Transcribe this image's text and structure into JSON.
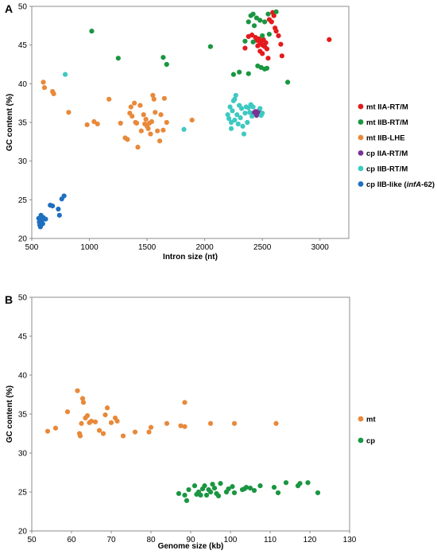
{
  "chart_data": [
    {
      "panel": "A",
      "type": "scatter",
      "title": "",
      "xlabel": "Intron size (nt)",
      "ylabel": "GC content (%)",
      "xlim": [
        500,
        3250
      ],
      "ylim": [
        20,
        50
      ],
      "xticks": [
        500,
        1000,
        1500,
        2000,
        2500,
        3000
      ],
      "yticks": [
        20,
        25,
        30,
        35,
        40,
        45,
        50
      ],
      "grid": false,
      "legend_position": "right",
      "series": [
        {
          "legend_prefix": "mt ",
          "legend_main": "IIA-RT/M",
          "legend_italic": "",
          "legend_suffix": "",
          "color": "#e41a1c",
          "points": [
            [
              2410,
              46.3
            ],
            [
              2440,
              46.0
            ],
            [
              2450,
              45.6
            ],
            [
              2470,
              45.8
            ],
            [
              2480,
              45.2
            ],
            [
              2490,
              45.5
            ],
            [
              2500,
              45.0
            ],
            [
              2510,
              45.7
            ],
            [
              2520,
              44.8
            ],
            [
              2530,
              45.3
            ],
            [
              2540,
              44.5
            ],
            [
              2460,
              44.9
            ],
            [
              2480,
              44.2
            ],
            [
              2560,
              48.3
            ],
            [
              2580,
              48.0
            ],
            [
              2590,
              49.2
            ],
            [
              2600,
              48.8
            ],
            [
              2610,
              47.2
            ],
            [
              2620,
              46.8
            ],
            [
              2640,
              46.2
            ],
            [
              2660,
              45.1
            ],
            [
              2670,
              43.6
            ],
            [
              2550,
              43.3
            ],
            [
              2500,
              43.9
            ],
            [
              2380,
              46.1
            ],
            [
              2350,
              44.6
            ],
            [
              3080,
              45.7
            ]
          ]
        },
        {
          "legend_prefix": "mt ",
          "legend_main": "IIB-RT/M",
          "legend_italic": "",
          "legend_suffix": "",
          "color": "#1a9641",
          "points": [
            [
              1020,
              46.8
            ],
            [
              1250,
              43.3
            ],
            [
              1640,
              43.4
            ],
            [
              1670,
              42.5
            ],
            [
              2050,
              44.8
            ],
            [
              2250,
              41.2
            ],
            [
              2300,
              41.5
            ],
            [
              2380,
              41.3
            ],
            [
              2720,
              40.2
            ],
            [
              2460,
              42.3
            ],
            [
              2490,
              42.1
            ],
            [
              2520,
              41.9
            ],
            [
              2540,
              42.0
            ],
            [
              2380,
              48.0
            ],
            [
              2400,
              48.8
            ],
            [
              2420,
              49.0
            ],
            [
              2450,
              48.5
            ],
            [
              2480,
              48.2
            ],
            [
              2520,
              48.0
            ],
            [
              2550,
              49.0
            ],
            [
              2620,
              49.3
            ],
            [
              2430,
              47.5
            ],
            [
              2560,
              46.4
            ],
            [
              2420,
              45.4
            ],
            [
              2500,
              46.2
            ],
            [
              2350,
              45.5
            ]
          ]
        },
        {
          "legend_prefix": "mt ",
          "legend_main": "IIB-LHE",
          "legend_italic": "",
          "legend_suffix": "",
          "color": "#e8893a",
          "points": [
            [
              600,
              40.2
            ],
            [
              610,
              39.5
            ],
            [
              680,
              39.0
            ],
            [
              690,
              38.7
            ],
            [
              820,
              36.3
            ],
            [
              980,
              34.7
            ],
            [
              1040,
              35.1
            ],
            [
              1070,
              34.8
            ],
            [
              1170,
              38.0
            ],
            [
              1270,
              34.9
            ],
            [
              1310,
              33.0
            ],
            [
              1330,
              32.8
            ],
            [
              1350,
              36.2
            ],
            [
              1360,
              37.0
            ],
            [
              1370,
              35.8
            ],
            [
              1390,
              37.5
            ],
            [
              1400,
              35.0
            ],
            [
              1410,
              34.9
            ],
            [
              1420,
              31.8
            ],
            [
              1440,
              37.2
            ],
            [
              1450,
              33.9
            ],
            [
              1470,
              36.0
            ],
            [
              1480,
              34.8
            ],
            [
              1490,
              35.4
            ],
            [
              1500,
              34.5
            ],
            [
              1510,
              34.2
            ],
            [
              1520,
              34.9
            ],
            [
              1530,
              33.5
            ],
            [
              1540,
              35.1
            ],
            [
              1550,
              38.5
            ],
            [
              1560,
              38.0
            ],
            [
              1570,
              36.3
            ],
            [
              1590,
              33.9
            ],
            [
              1610,
              32.6
            ],
            [
              1620,
              36.0
            ],
            [
              1640,
              34.0
            ],
            [
              1650,
              38.1
            ],
            [
              1670,
              35.0
            ],
            [
              1890,
              35.3
            ]
          ]
        },
        {
          "legend_prefix": "cp ",
          "legend_main": "IIA-RT/M",
          "legend_italic": "",
          "legend_suffix": "",
          "color": "#7b3294",
          "points": [
            [
              2420,
              36.2
            ],
            [
              2440,
              36.4
            ],
            [
              2460,
              36.1
            ],
            [
              2470,
              36.5
            ],
            [
              2450,
              35.9
            ]
          ]
        },
        {
          "legend_prefix": "cp ",
          "legend_main": "IIB-RT/M",
          "legend_italic": "",
          "legend_suffix": "",
          "color": "#3ec9c1",
          "points": [
            [
              790,
              41.2
            ],
            [
              1820,
              34.1
            ],
            [
              2200,
              36.0
            ],
            [
              2210,
              35.5
            ],
            [
              2220,
              37.0
            ],
            [
              2230,
              34.2
            ],
            [
              2240,
              36.5
            ],
            [
              2250,
              37.8
            ],
            [
              2260,
              35.3
            ],
            [
              2270,
              38.5
            ],
            [
              2280,
              36.0
            ],
            [
              2290,
              34.8
            ],
            [
              2300,
              37.2
            ],
            [
              2310,
              35.6
            ],
            [
              2320,
              36.8
            ],
            [
              2330,
              34.5
            ],
            [
              2340,
              33.5
            ],
            [
              2350,
              36.2
            ],
            [
              2360,
              37.0
            ],
            [
              2370,
              35.0
            ],
            [
              2380,
              36.9
            ],
            [
              2390,
              36.3
            ],
            [
              2400,
              37.3
            ],
            [
              2410,
              35.8
            ],
            [
              2420,
              37.0
            ],
            [
              2480,
              36.8
            ],
            [
              2490,
              35.9
            ],
            [
              2500,
              36.2
            ],
            [
              2230,
              35.0
            ],
            [
              2260,
              38.0
            ]
          ]
        },
        {
          "legend_prefix": "cp ",
          "legend_main": "IIB-like (",
          "legend_italic": "infA",
          "legend_suffix": "-62)",
          "color": "#1f6fbf",
          "points": [
            [
              560,
              22.6
            ],
            [
              565,
              22.1
            ],
            [
              570,
              21.7
            ],
            [
              575,
              21.5
            ],
            [
              580,
              23.0
            ],
            [
              585,
              22.8
            ],
            [
              590,
              22.4
            ],
            [
              595,
              21.9
            ],
            [
              600,
              22.7
            ],
            [
              620,
              22.5
            ],
            [
              660,
              24.3
            ],
            [
              680,
              24.2
            ],
            [
              730,
              23.8
            ],
            [
              740,
              23.0
            ],
            [
              760,
              25.1
            ],
            [
              780,
              25.5
            ]
          ]
        }
      ]
    },
    {
      "panel": "B",
      "type": "scatter",
      "title": "",
      "xlabel": "Genome size (kb)",
      "ylabel": "GC content (%)",
      "xlim": [
        50,
        130
      ],
      "ylim": [
        20,
        50
      ],
      "xticks": [
        50,
        60,
        70,
        80,
        90,
        100,
        110,
        120,
        130
      ],
      "yticks": [
        20,
        25,
        30,
        35,
        40,
        45,
        50
      ],
      "grid": false,
      "legend_position": "right",
      "series": [
        {
          "legend_prefix": "mt",
          "legend_main": "",
          "legend_italic": "",
          "legend_suffix": "",
          "color": "#e8893a",
          "points": [
            [
              54,
              32.8
            ],
            [
              56,
              33.2
            ],
            [
              59,
              35.3
            ],
            [
              61.5,
              38.0
            ],
            [
              62,
              32.5
            ],
            [
              62.2,
              32.2
            ],
            [
              62.5,
              33.8
            ],
            [
              62.8,
              37.0
            ],
            [
              63,
              36.5
            ],
            [
              63.5,
              34.5
            ],
            [
              64,
              34.8
            ],
            [
              64.5,
              33.9
            ],
            [
              65,
              34.1
            ],
            [
              66,
              34.0
            ],
            [
              67,
              32.9
            ],
            [
              68,
              32.5
            ],
            [
              68.5,
              34.9
            ],
            [
              69,
              35.8
            ],
            [
              70,
              33.9
            ],
            [
              71,
              34.5
            ],
            [
              71.5,
              34.1
            ],
            [
              73,
              32.2
            ],
            [
              76,
              32.7
            ],
            [
              79.5,
              32.7
            ],
            [
              80,
              33.3
            ],
            [
              84,
              33.8
            ],
            [
              87.5,
              33.5
            ],
            [
              88.5,
              33.4
            ],
            [
              88.5,
              36.5
            ],
            [
              95,
              33.8
            ],
            [
              101,
              33.8
            ],
            [
              111.5,
              33.8
            ]
          ]
        },
        {
          "legend_prefix": "cp",
          "legend_main": "",
          "legend_italic": "",
          "legend_suffix": "",
          "color": "#1a9641",
          "points": [
            [
              87,
              24.8
            ],
            [
              88.5,
              24.6
            ],
            [
              89,
              23.9
            ],
            [
              89.5,
              25.3
            ],
            [
              91,
              25.8
            ],
            [
              91.5,
              24.7
            ],
            [
              92,
              25.0
            ],
            [
              92.5,
              24.6
            ],
            [
              93,
              25.4
            ],
            [
              93.5,
              25.8
            ],
            [
              94,
              24.6
            ],
            [
              94.5,
              25.3
            ],
            [
              95,
              25.0
            ],
            [
              95.5,
              26.0
            ],
            [
              96,
              25.5
            ],
            [
              96.5,
              24.8
            ],
            [
              97,
              24.5
            ],
            [
              97.5,
              26.1
            ],
            [
              99,
              25.0
            ],
            [
              99.5,
              25.4
            ],
            [
              100.5,
              25.7
            ],
            [
              101,
              24.9
            ],
            [
              103,
              25.3
            ],
            [
              103.5,
              25.4
            ],
            [
              104,
              25.6
            ],
            [
              105,
              25.5
            ],
            [
              106,
              25.2
            ],
            [
              107.5,
              25.8
            ],
            [
              111,
              25.6
            ],
            [
              112,
              24.9
            ],
            [
              114,
              26.2
            ],
            [
              117,
              25.8
            ],
            [
              117.5,
              26.1
            ],
            [
              119.5,
              26.2
            ],
            [
              122,
              24.9
            ]
          ]
        }
      ]
    }
  ]
}
